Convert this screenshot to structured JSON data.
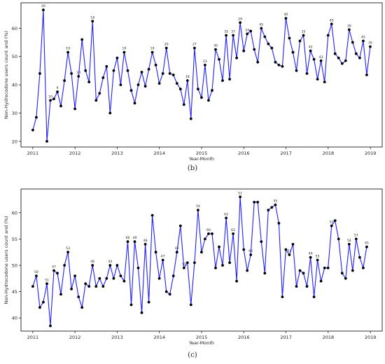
{
  "charts": [
    {
      "caption": "(b)",
      "chart_data": {
        "type": "line",
        "xlabel": "Year-Month",
        "ylabel": "Non-Hydrocodone users count and (%)",
        "xticks": [
          "2011",
          "2012",
          "2013",
          "2014",
          "2015",
          "2016",
          "2017",
          "2018",
          "2019"
        ],
        "yticks": [
          20,
          30,
          40,
          50,
          60
        ],
        "xlim": [
          2010.72,
          2019.28
        ],
        "ylim": [
          18,
          69
        ],
        "x_start": 2011.0,
        "x_step": 0.0833,
        "values": [
          24,
          28.5,
          44,
          66.5,
          20,
          34.5,
          35,
          37.5,
          32.5,
          41.5,
          51.5,
          44,
          31.5,
          43,
          56,
          45,
          41,
          62.5,
          34.5,
          37,
          42.5,
          46.5,
          30,
          45,
          49.5,
          40,
          51.5,
          45,
          38,
          33.5,
          40,
          44.5,
          39.5,
          45.5,
          51.5,
          47,
          40.5,
          44,
          53,
          44,
          43.5,
          40.5,
          38.5,
          33,
          41.5,
          28,
          53,
          38.5,
          35.5,
          47,
          34.5,
          38,
          52.5,
          49,
          41.5,
          57.5,
          42,
          57.5,
          49.5,
          62,
          52,
          58,
          59,
          52.5,
          48,
          60,
          57,
          54.5,
          53,
          48,
          47,
          46.5,
          63.5,
          56.5,
          51.5,
          45,
          55.5,
          57.5,
          44,
          52,
          49,
          42,
          48.5,
          41,
          57.5,
          61.5,
          51,
          49.5,
          47.5,
          48.5,
          59.5,
          55,
          51,
          49.5,
          55.5,
          43.5,
          53.5
        ],
        "point_labels": [
          "",
          "",
          "",
          "20",
          "",
          "10",
          "",
          "9",
          "",
          "",
          "19",
          "",
          "",
          "14",
          "",
          "",
          "",
          "18",
          "",
          "",
          "",
          "",
          "",
          "",
          "",
          "",
          "19",
          "",
          "",
          "",
          "",
          "",
          "",
          "",
          "19",
          "",
          "",
          "",
          "26",
          "",
          "",
          "",
          "",
          "",
          "18",
          "",
          "27",
          "",
          "",
          "23",
          "",
          "",
          "30",
          "",
          "",
          "35",
          "",
          "37",
          "",
          "29",
          "",
          "34",
          "",
          "",
          "",
          "45",
          "",
          "",
          "",
          "",
          "",
          "",
          "40",
          "",
          "",
          "",
          "",
          "35",
          "",
          "42",
          "",
          "",
          "43",
          "",
          "",
          "45",
          "",
          "",
          "",
          "",
          "39",
          "",
          "",
          "",
          "45",
          "",
          "35"
        ],
        "color": "#1f1fff",
        "marker_color": "#000000",
        "grid": false
      }
    },
    {
      "caption": "(c)",
      "chart_data": {
        "type": "line",
        "xlabel": "Year-Month",
        "ylabel": "Non-Hydrocodone users count and (%)",
        "xticks": [
          "2011",
          "2012",
          "2013",
          "2014",
          "2015",
          "2016",
          "2017",
          "2018",
          "2019"
        ],
        "yticks": [
          40,
          45,
          50,
          55,
          60
        ],
        "xlim": [
          2010.72,
          2019.28
        ],
        "ylim": [
          37.5,
          64.5
        ],
        "x_start": 2011.0,
        "x_step": 0.0833,
        "values": [
          46,
          48,
          42,
          43,
          46.5,
          38.5,
          49,
          48.5,
          44.5,
          50,
          52.5,
          45.5,
          48,
          44,
          42,
          46.5,
          46,
          50,
          46,
          47.5,
          46,
          47.5,
          50,
          47.5,
          50,
          48,
          47,
          54.5,
          42.5,
          54.5,
          49.5,
          41,
          54,
          43,
          59.5,
          52.5,
          47.5,
          51,
          45,
          44.5,
          48,
          52.5,
          57.5,
          49.5,
          50.5,
          42.5,
          50.5,
          60.5,
          52.5,
          55,
          56,
          56,
          49.5,
          53.5,
          50,
          59,
          50.5,
          56,
          47,
          63,
          53,
          49,
          52,
          62,
          62,
          54.5,
          48.5,
          60.5,
          61,
          61.5,
          58,
          44,
          53,
          52,
          54,
          46,
          49,
          48.5,
          46,
          51.5,
          44,
          51,
          47,
          49.5,
          49.5,
          57.5,
          58.5,
          55,
          48.5,
          47.5,
          54,
          49,
          55,
          51.5,
          49.5,
          53.5
        ],
        "point_labels": [
          "",
          "50",
          "",
          "",
          "51",
          "",
          "47",
          "",
          "",
          "",
          "53",
          "",
          "",
          "",
          "",
          "",
          "",
          "46",
          "",
          "",
          "",
          "",
          "44",
          "",
          "",
          "",
          "",
          "66",
          "",
          "49",
          "",
          "",
          "48",
          "",
          "",
          "",
          "",
          "47",
          "",
          "",
          "",
          "46",
          "",
          "57",
          "",
          "",
          "",
          "54",
          "",
          "",
          "60",
          "",
          "",
          "",
          "",
          "62",
          "",
          "62",
          "",
          "51",
          "",
          "",
          "65",
          "",
          "",
          "",
          "",
          "",
          "",
          "55",
          "",
          "",
          "",
          "52",
          "",
          "",
          "",
          "",
          "",
          "49",
          "",
          "55",
          "",
          "",
          "",
          "52",
          "",
          "",
          "",
          "",
          "54",
          "",
          "57",
          "",
          "",
          "45"
        ],
        "color": "#1f1fff",
        "marker_color": "#000000",
        "grid": false
      }
    }
  ]
}
